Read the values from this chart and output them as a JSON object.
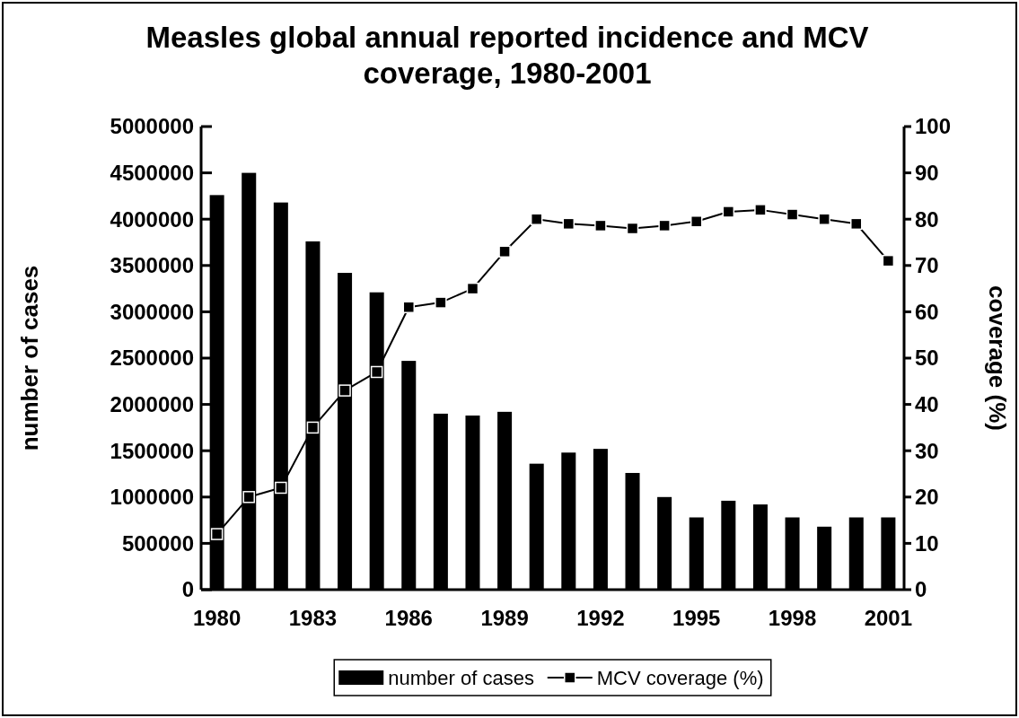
{
  "chart_data": {
    "type": "bar",
    "title": "Measles global annual reported incidence and MCV coverage, 1980-2001",
    "ylabel": "number of cases",
    "y2label": "coverage (%)",
    "categories": [
      "1980",
      null,
      null,
      "1983",
      null,
      null,
      "1986",
      null,
      null,
      "1989",
      null,
      null,
      "1992",
      null,
      null,
      "1995",
      null,
      null,
      "1998",
      null,
      null,
      "2001"
    ],
    "series": [
      {
        "name": "number of cases",
        "color": "#000000",
        "values": [
          4260000,
          4500000,
          4180000,
          3760000,
          3420000,
          3210000,
          2470000,
          1900000,
          1880000,
          1920000,
          1360000,
          1480000,
          1520000,
          1260000,
          1000000,
          780000,
          960000,
          920000,
          780000,
          680000,
          780000,
          780000
        ]
      },
      {
        "name": "MCV coverage (%)",
        "type": "line",
        "axis": "y2",
        "color": "#000000",
        "marker": "square",
        "values": [
          12,
          20,
          22,
          35,
          43,
          47,
          61,
          62,
          65,
          73,
          80,
          79,
          78.6,
          78,
          78.6,
          79.5,
          81.6,
          82,
          81,
          80,
          79,
          71
        ]
      }
    ],
    "ylim": [
      0,
      5000000
    ],
    "yticks": [
      0,
      500000,
      1000000,
      1500000,
      2000000,
      2500000,
      3000000,
      3500000,
      4000000,
      4500000,
      5000000
    ],
    "y2lim": [
      0,
      100
    ],
    "y2ticks": [
      0,
      10,
      20,
      30,
      40,
      50,
      60,
      70,
      80,
      90,
      100
    ],
    "grid": false,
    "legend": "bottom"
  }
}
